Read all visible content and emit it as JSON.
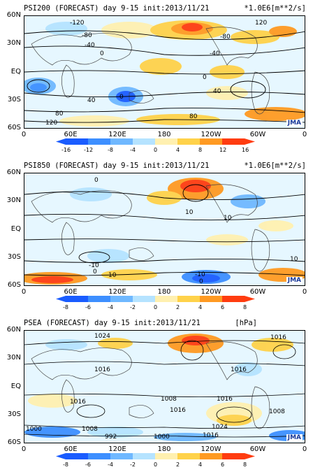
{
  "panels": [
    {
      "title": "PSI200 (FORECAST) day 9-15 init:2013/11/21",
      "units": "*1.0E6[m**2/s]",
      "lat_labels": [
        "60N",
        "30N",
        "EQ",
        "30S",
        "60S"
      ],
      "lon_labels": [
        "0",
        "60E",
        "120E",
        "180",
        "120W",
        "60W",
        "0"
      ],
      "colorbar_ticks": [
        "-16",
        "-12",
        "-8",
        "-4",
        "0",
        "4",
        "8",
        "12",
        "16"
      ],
      "contour_labels": [
        "-120",
        "-80",
        "-40",
        "0",
        "40",
        "80",
        "120",
        "-80",
        "-40",
        "0",
        "-40",
        "0",
        "40",
        "80",
        "120",
        "0",
        "-80",
        "-40",
        "40",
        "80"
      ],
      "logo": "JMA"
    },
    {
      "title": "PSI850 (FORECAST) day 9-15 init:2013/11/21",
      "units": "*1.0E6[m**2/s]",
      "lat_labels": [
        "60N",
        "30N",
        "EQ",
        "30S",
        "60S"
      ],
      "lon_labels": [
        "0",
        "60E",
        "120E",
        "180",
        "120W",
        "60W",
        "0"
      ],
      "colorbar_ticks": [
        "-8",
        "-6",
        "-4",
        "-2",
        "0",
        "2",
        "4",
        "6",
        "8"
      ],
      "contour_labels": [
        "0",
        "10",
        "-10",
        "10",
        "-10",
        "0",
        "10",
        "-10",
        "-10",
        "10",
        "0",
        "10"
      ],
      "logo": "JMA"
    },
    {
      "title": "PSEA (FORECAST) day 9-15 init:2013/11/21",
      "units": "[hPa]",
      "lat_labels": [
        "60N",
        "30N",
        "EQ",
        "30S",
        "60S"
      ],
      "lon_labels": [
        "0",
        "60E",
        "120E",
        "180",
        "120W",
        "60W",
        "0"
      ],
      "colorbar_ticks": [
        "-8",
        "-6",
        "-4",
        "-2",
        "0",
        "2",
        "4",
        "6",
        "8"
      ],
      "contour_labels": [
        "1024",
        "1016",
        "1016",
        "1016",
        "1008",
        "1016",
        "1016",
        "1000",
        "1008",
        "992",
        "1000",
        "1024",
        "1016",
        "1008",
        "1000",
        "1016"
      ],
      "logo": "JMA"
    }
  ],
  "colors": {
    "shade_neg": [
      "#1a5cff",
      "#3d8fff",
      "#6fb8ff",
      "#b5e3ff"
    ],
    "shade_pos": [
      "#fff0b0",
      "#ffd24a",
      "#ff9a22",
      "#ff3c10"
    ]
  }
}
